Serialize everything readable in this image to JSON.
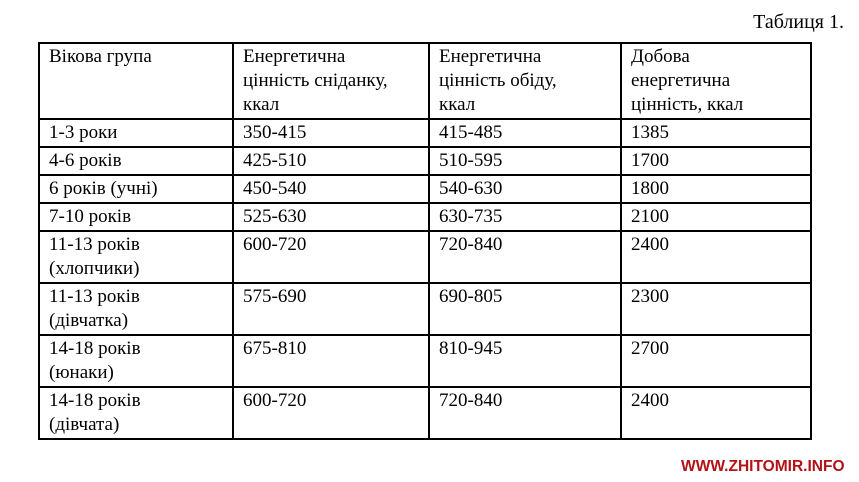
{
  "page": {
    "caption": "Таблиця 1."
  },
  "colors": {
    "background": "#ffffff",
    "text": "#000000",
    "border": "#000000",
    "watermark_red": "#b31116"
  },
  "table": {
    "column_keys": [
      "age-group",
      "breakfast-kcal",
      "lunch-kcal",
      "daily-kcal"
    ],
    "columns": [
      "Вікова група",
      "Енергетична\nцінність сніданку,\nккал",
      "Енергетична\nцінність обіду,\nккал",
      "Добова\nенергетична\nцінність, ккал"
    ],
    "rows": [
      [
        "1-3 роки",
        "350-415",
        "415-485",
        "1385"
      ],
      [
        "4-6 років",
        "425-510",
        "510-595",
        "1700"
      ],
      [
        "6 років (учні)",
        "450-540",
        "540-630",
        "1800"
      ],
      [
        "7-10 років",
        "525-630",
        "630-735",
        "2100"
      ],
      [
        "11-13 років\n(хлопчики)",
        "600-720",
        "720-840",
        "2400"
      ],
      [
        "11-13 років\n(дівчатка)",
        "575-690",
        "690-805",
        "2300"
      ],
      [
        "14-18 років\n(юнаки)",
        "675-810",
        "810-945",
        "2700"
      ],
      [
        "14-18 років\n(дівчата)",
        "600-720",
        "720-840",
        "2400"
      ]
    ]
  },
  "watermark": {
    "text": "WWW.ZHITOMIR.INFO"
  }
}
